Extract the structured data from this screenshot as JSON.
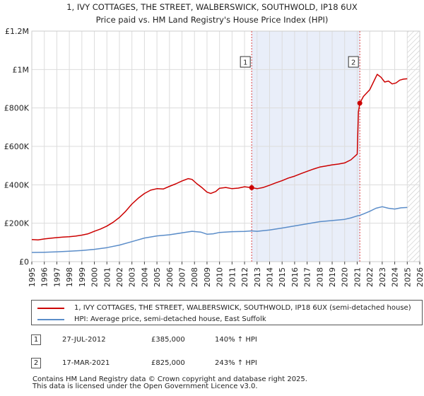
{
  "chart_data": {
    "type": "line",
    "title": "1, IVY COTTAGES, THE STREET, WALBERSWICK, SOUTHWOLD, IP18 6UX",
    "subtitle": "Price paid vs. HM Land Registry's House Price Index (HPI)",
    "xlabel": "",
    "ylabel": "",
    "xlim": [
      1995,
      2026
    ],
    "ylim": [
      0,
      1200000
    ],
    "x_ticks": [
      "1995",
      "1996",
      "1997",
      "1998",
      "1999",
      "2000",
      "2001",
      "2002",
      "2003",
      "2004",
      "2005",
      "2006",
      "2007",
      "2008",
      "2009",
      "2010",
      "2011",
      "2012",
      "2013",
      "2014",
      "2015",
      "2016",
      "2017",
      "2018",
      "2019",
      "2020",
      "2021",
      "2022",
      "2023",
      "2024",
      "2025",
      "2026"
    ],
    "y_ticks": [
      {
        "value": 0,
        "label": "£0"
      },
      {
        "value": 200000,
        "label": "£200K"
      },
      {
        "value": 400000,
        "label": "£400K"
      },
      {
        "value": 600000,
        "label": "£600K"
      },
      {
        "value": 800000,
        "label": "£800K"
      },
      {
        "value": 1000000,
        "label": "£1M"
      },
      {
        "value": 1200000,
        "label": "£1.2M"
      }
    ],
    "grid": true,
    "highlight_band": [
      2012.57,
      2021.21
    ],
    "future_hatch_from": 2025.0,
    "series": [
      {
        "name": "1, IVY COTTAGES, THE STREET, WALBERSWICK, SOUTHWOLD, IP18 6UX (semi-detached house)",
        "color": "#cc0000",
        "x": [
          1995.0,
          1995.5,
          1996.0,
          1996.5,
          1997.0,
          1997.5,
          1998.0,
          1998.5,
          1999.0,
          1999.5,
          2000.0,
          2000.5,
          2001.0,
          2001.5,
          2002.0,
          2002.5,
          2003.0,
          2003.5,
          2004.0,
          2004.5,
          2005.0,
          2005.5,
          2006.0,
          2006.5,
          2007.0,
          2007.5,
          2007.8,
          2008.2,
          2008.6,
          2009.0,
          2009.3,
          2009.7,
          2010.0,
          2010.5,
          2011.0,
          2011.5,
          2012.0,
          2012.57,
          2013.0,
          2013.5,
          2014.0,
          2014.5,
          2015.0,
          2015.5,
          2016.0,
          2016.5,
          2017.0,
          2017.5,
          2018.0,
          2018.5,
          2019.0,
          2019.5,
          2020.0,
          2020.5,
          2021.0,
          2021.1,
          2021.21,
          2021.5,
          2022.0,
          2022.3,
          2022.6,
          2022.9,
          2023.2,
          2023.5,
          2023.8,
          2024.1,
          2024.4,
          2024.7,
          2025.0
        ],
        "values": [
          115000,
          113000,
          118000,
          122000,
          125000,
          128000,
          130000,
          133000,
          138000,
          145000,
          158000,
          170000,
          185000,
          205000,
          230000,
          262000,
          300000,
          330000,
          355000,
          372000,
          380000,
          378000,
          392000,
          405000,
          420000,
          432000,
          428000,
          405000,
          385000,
          362000,
          355000,
          365000,
          382000,
          386000,
          380000,
          383000,
          390000,
          385000,
          380000,
          386000,
          398000,
          410000,
          422000,
          435000,
          445000,
          458000,
          470000,
          482000,
          492000,
          498000,
          504000,
          508000,
          514000,
          530000,
          560000,
          780000,
          825000,
          860000,
          895000,
          935000,
          975000,
          960000,
          935000,
          940000,
          925000,
          930000,
          945000,
          950000,
          952000
        ]
      },
      {
        "name": "HPI: Average price, semi-detached house, East Suffolk",
        "color": "#5b8dc9",
        "x": [
          1995.0,
          1996.0,
          1997.0,
          1998.0,
          1999.0,
          2000.0,
          2001.0,
          2002.0,
          2003.0,
          2004.0,
          2005.0,
          2006.0,
          2007.0,
          2007.8,
          2008.5,
          2009.0,
          2009.5,
          2010.0,
          2011.0,
          2012.0,
          2012.57,
          2013.0,
          2014.0,
          2015.0,
          2016.0,
          2017.0,
          2018.0,
          2019.0,
          2020.0,
          2020.5,
          2021.0,
          2021.21,
          2021.5,
          2022.0,
          2022.5,
          2023.0,
          2023.5,
          2024.0,
          2024.5,
          2025.0
        ],
        "values": [
          48000,
          49000,
          51000,
          54000,
          58000,
          64000,
          73000,
          86000,
          104000,
          123000,
          134000,
          140000,
          150000,
          158000,
          154000,
          143000,
          145000,
          152000,
          156000,
          157000,
          160000,
          158000,
          165000,
          175000,
          186000,
          197000,
          208000,
          214000,
          220000,
          228000,
          238000,
          241000,
          248000,
          262000,
          278000,
          286000,
          278000,
          274000,
          280000,
          282000
        ]
      }
    ],
    "annotations": [
      {
        "label": "1",
        "x": 2012.57,
        "value": 385000,
        "date": "27-JUL-2012",
        "price": "£385,000",
        "hpi": "140% ↑ HPI"
      },
      {
        "label": "2",
        "x": 2021.21,
        "value": 825000,
        "date": "17-MAR-2021",
        "price": "£825,000",
        "hpi": "243% ↑ HPI"
      }
    ]
  },
  "legend": {
    "items": [
      {
        "label": "1, IVY COTTAGES, THE STREET, WALBERSWICK, SOUTHWOLD, IP18 6UX (semi-detached house)",
        "color": "#cc0000"
      },
      {
        "label": "HPI: Average price, semi-detached house, East Suffolk",
        "color": "#5b8dc9"
      }
    ]
  },
  "sales": [
    {
      "num": "1",
      "date": "27-JUL-2012",
      "price": "£385,000",
      "hpi": "140% ↑ HPI"
    },
    {
      "num": "2",
      "date": "17-MAR-2021",
      "price": "£825,000",
      "hpi": "243% ↑ HPI"
    }
  ],
  "footer": {
    "line1": "Contains HM Land Registry data © Crown copyright and database right 2025.",
    "line2": "This data is licensed under the Open Government Licence v3.0."
  }
}
